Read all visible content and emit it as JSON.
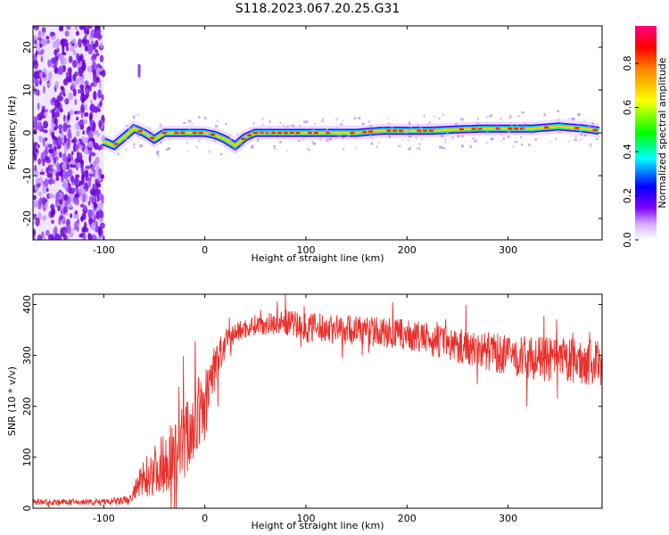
{
  "title": "S118.2023.067.20.25.G31",
  "chart_data": [
    {
      "type": "heatmap",
      "panel": "top",
      "xlabel": "Height of straight line (km)",
      "ylabel": "Frequency (Hz)",
      "xlim": [
        -170,
        393
      ],
      "ylim": [
        -25,
        25
      ],
      "x_ticks": [
        -100,
        0,
        100,
        200,
        300
      ],
      "y_ticks": [
        -20,
        -10,
        0,
        10,
        20
      ],
      "colorbar": {
        "label": "Normalized spectral amplitude",
        "range": [
          0,
          0.97
        ],
        "ticks": [
          0.0,
          0.2,
          0.4,
          0.6,
          0.8
        ]
      },
      "noise_region": {
        "x_range": [
          -170,
          -100
        ],
        "y_range": [
          -25,
          25
        ]
      },
      "ridge": {
        "description": "peak frequency track",
        "x": [
          -100,
          -90,
          -80,
          -70,
          -60,
          -50,
          -40,
          -30,
          -20,
          -10,
          0,
          10,
          20,
          30,
          40,
          50,
          75,
          100,
          125,
          150,
          175,
          200,
          225,
          250,
          275,
          300,
          325,
          350,
          375,
          390
        ],
        "y": [
          -2,
          -3,
          -1,
          1,
          0,
          -1.5,
          0,
          0,
          0,
          0,
          0,
          -0.5,
          -1.5,
          -3,
          -1,
          0,
          0,
          0,
          0,
          0,
          0.5,
          0.5,
          0.5,
          0.8,
          1,
          1,
          1,
          1.5,
          1,
          0.5
        ]
      },
      "spike": {
        "x": -65,
        "y_range": [
          13,
          16
        ]
      }
    },
    {
      "type": "line",
      "panel": "bottom",
      "xlabel": "Height of straight line (km)",
      "ylabel": "SNR (10 * v/v)",
      "xlim": [
        -170,
        393
      ],
      "ylim": [
        0,
        420
      ],
      "x_ticks": [
        -100,
        0,
        100,
        200,
        300
      ],
      "y_ticks": [
        0,
        100,
        200,
        300,
        400
      ],
      "color": "#e8302b",
      "envelope": {
        "x": [
          -170,
          -100,
          -75,
          -60,
          -40,
          -20,
          -10,
          0,
          10,
          20,
          30,
          50,
          80,
          100,
          150,
          200,
          250,
          300,
          350,
          393
        ],
        "mean": [
          12,
          12,
          15,
          60,
          90,
          130,
          170,
          200,
          280,
          320,
          345,
          360,
          365,
          355,
          350,
          340,
          320,
          300,
          290,
          285
        ],
        "spread": [
          6,
          6,
          10,
          40,
          60,
          80,
          80,
          70,
          50,
          30,
          20,
          20,
          25,
          30,
          30,
          30,
          35,
          40,
          45,
          45
        ]
      }
    }
  ]
}
